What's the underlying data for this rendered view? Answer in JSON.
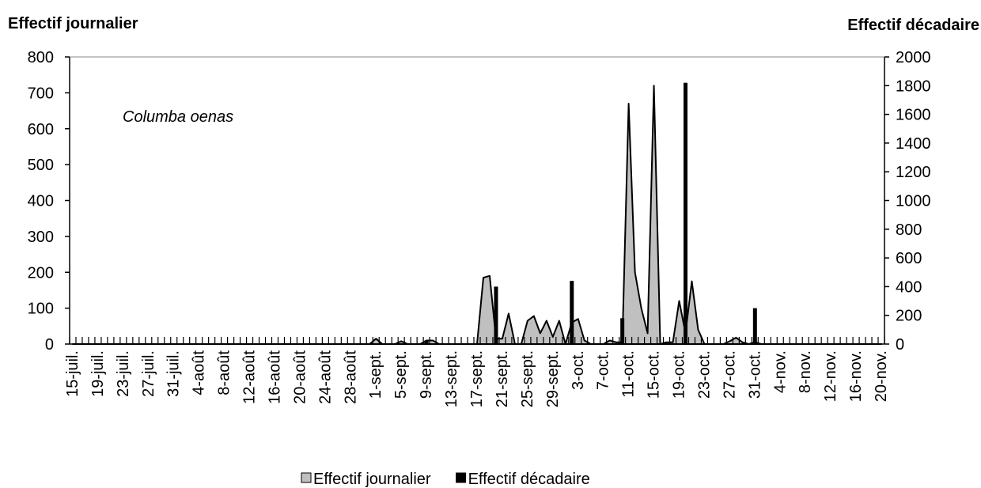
{
  "chart_data": {
    "type": "area-bar",
    "title": "Effectif journalier",
    "y2_title": "Effectif décadaire",
    "annotation": "Columba oenas",
    "categories": [
      "15-juil.",
      null,
      null,
      null,
      "19-juil.",
      null,
      null,
      null,
      "23-juil.",
      null,
      null,
      null,
      "27-juil.",
      null,
      null,
      null,
      "31-juil.",
      null,
      null,
      null,
      "4-août",
      null,
      null,
      null,
      "8-août",
      null,
      null,
      null,
      "12-août",
      null,
      null,
      null,
      "16-août",
      null,
      null,
      null,
      "20-août",
      null,
      null,
      null,
      "24-août",
      null,
      null,
      null,
      "28-août",
      null,
      null,
      null,
      "1-sept.",
      null,
      null,
      null,
      "5-sept.",
      null,
      null,
      null,
      "9-sept.",
      null,
      null,
      null,
      "13-sept.",
      null,
      null,
      null,
      "17-sept.",
      null,
      null,
      null,
      "21-sept.",
      null,
      null,
      null,
      "25-sept.",
      null,
      null,
      null,
      "29-sept.",
      null,
      null,
      null,
      "3-oct.",
      null,
      null,
      null,
      "7-oct.",
      null,
      null,
      null,
      "11-oct.",
      null,
      null,
      null,
      "15-oct.",
      null,
      null,
      null,
      "19-oct.",
      null,
      null,
      null,
      "23-oct.",
      null,
      null,
      null,
      "27-oct.",
      null,
      null,
      null,
      "31-oct.",
      null,
      null,
      null,
      "4-nov.",
      null,
      null,
      null,
      "8-nov.",
      null,
      null,
      null,
      "12-nov.",
      null,
      null,
      null,
      "16-nov.",
      null,
      null,
      null,
      "20-nov."
    ],
    "series": [
      {
        "name": "Effectif journalier",
        "type": "area",
        "color": "#c0c0c0",
        "values": [
          0,
          0,
          0,
          0,
          0,
          0,
          0,
          0,
          0,
          0,
          0,
          0,
          0,
          0,
          0,
          0,
          0,
          0,
          0,
          0,
          0,
          0,
          0,
          0,
          0,
          0,
          0,
          0,
          0,
          0,
          0,
          0,
          0,
          0,
          0,
          0,
          0,
          0,
          0,
          0,
          0,
          0,
          0,
          0,
          0,
          0,
          0,
          0,
          15,
          0,
          0,
          0,
          8,
          0,
          0,
          0,
          10,
          10,
          0,
          0,
          0,
          0,
          0,
          0,
          0,
          185,
          190,
          15,
          15,
          85,
          0,
          0,
          65,
          78,
          30,
          65,
          20,
          65,
          0,
          60,
          70,
          10,
          0,
          0,
          0,
          10,
          5,
          5,
          670,
          200,
          100,
          30,
          720,
          0,
          5,
          5,
          120,
          30,
          175,
          40,
          0,
          0,
          0,
          0,
          8,
          18,
          5,
          0,
          5,
          0,
          0,
          0,
          0,
          0,
          0,
          0,
          0,
          0,
          0,
          0,
          0,
          0,
          0,
          0,
          0,
          0,
          0,
          0,
          0
        ]
      },
      {
        "name": "Effectif décadaire",
        "type": "bar",
        "axis": "y2",
        "color": "#000000",
        "values": [
          null,
          null,
          null,
          null,
          null,
          null,
          null,
          null,
          null,
          null,
          null,
          null,
          null,
          null,
          null,
          null,
          null,
          null,
          null,
          null,
          null,
          null,
          null,
          null,
          null,
          null,
          null,
          null,
          null,
          null,
          null,
          null,
          null,
          null,
          null,
          null,
          null,
          null,
          null,
          null,
          null,
          null,
          null,
          null,
          null,
          null,
          null,
          null,
          null,
          null,
          null,
          null,
          null,
          null,
          null,
          null,
          25,
          null,
          null,
          null,
          null,
          null,
          null,
          null,
          null,
          null,
          null,
          400,
          null,
          null,
          null,
          null,
          null,
          null,
          null,
          null,
          null,
          null,
          null,
          440,
          null,
          null,
          null,
          null,
          null,
          null,
          null,
          180,
          null,
          null,
          null,
          null,
          null,
          null,
          null,
          null,
          null,
          1820,
          null,
          null,
          null,
          null,
          null,
          null,
          null,
          null,
          null,
          null,
          250,
          null,
          null,
          null,
          null,
          null,
          null,
          null,
          null,
          null,
          null,
          null,
          null,
          null,
          null,
          null,
          null,
          null,
          null,
          null,
          null
        ]
      }
    ],
    "ylim": [
      0,
      800
    ],
    "yticks": [
      0,
      100,
      200,
      300,
      400,
      500,
      600,
      700,
      800
    ],
    "y2lim": [
      0,
      2000
    ],
    "y2ticks": [
      0,
      200,
      400,
      600,
      800,
      1000,
      1200,
      1400,
      1600,
      1800,
      2000
    ],
    "legend": "bottom"
  }
}
